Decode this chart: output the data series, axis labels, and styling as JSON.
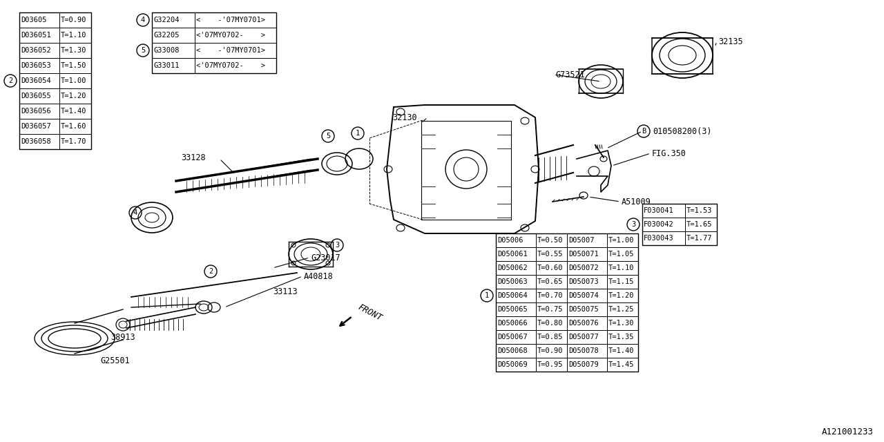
{
  "bg_color": "#ffffff",
  "line_color": "#000000",
  "watermark": "A121001233",
  "table2_rows": [
    [
      "D03605",
      "T=0.90"
    ],
    [
      "D036051",
      "T=1.10"
    ],
    [
      "D036052",
      "T=1.30"
    ],
    [
      "D036053",
      "T=1.50"
    ],
    [
      "D036054",
      "T=1.00"
    ],
    [
      "D036055",
      "T=1.20"
    ],
    [
      "D036056",
      "T=1.40"
    ],
    [
      "D036057",
      "T=1.60"
    ],
    [
      "D036058",
      "T=1.70"
    ]
  ],
  "table2_circle_row": 4,
  "table2_circle_label": "2",
  "table4_rows": [
    [
      "G32204",
      "<    -'07MY0701>"
    ],
    [
      "G32205",
      "<'07MY0702-    >"
    ],
    [
      "G33008",
      "<    -'07MY0701>"
    ],
    [
      "G33011",
      "<'07MY0702-    >"
    ]
  ],
  "table4_circle_rows": [
    0,
    2
  ],
  "table4_circle_labels": [
    "4",
    "5"
  ],
  "table3_rows": [
    [
      "F030041",
      "T=1.53"
    ],
    [
      "F030042",
      "T=1.65"
    ],
    [
      "F030043",
      "T=1.77"
    ]
  ],
  "table3_circle_row": 1,
  "table3_circle_label": "3",
  "table1_rows": [
    [
      "D05006",
      "T=0.50",
      "D05007",
      "T=1.00"
    ],
    [
      "D050061",
      "T=0.55",
      "D050071",
      "T=1.05"
    ],
    [
      "D050062",
      "T=0.60",
      "D050072",
      "T=1.10"
    ],
    [
      "D050063",
      "T=0.65",
      "D050073",
      "T=1.15"
    ],
    [
      "D050064",
      "T=0.70",
      "D050074",
      "T=1.20"
    ],
    [
      "D050065",
      "T=0.75",
      "D050075",
      "T=1.25"
    ],
    [
      "D050066",
      "T=0.80",
      "D050076",
      "T=1.30"
    ],
    [
      "D050067",
      "T=0.85",
      "D050077",
      "T=1.35"
    ],
    [
      "D050068",
      "T=0.90",
      "D050078",
      "T=1.40"
    ],
    [
      "D050069",
      "T=0.95",
      "D050079",
      "T=1.45"
    ]
  ],
  "table1_circle_row": 4,
  "table1_circle_label": "1",
  "font_size_table": 7.5,
  "font_size_label": 8.5,
  "font_size_watermark": 9
}
